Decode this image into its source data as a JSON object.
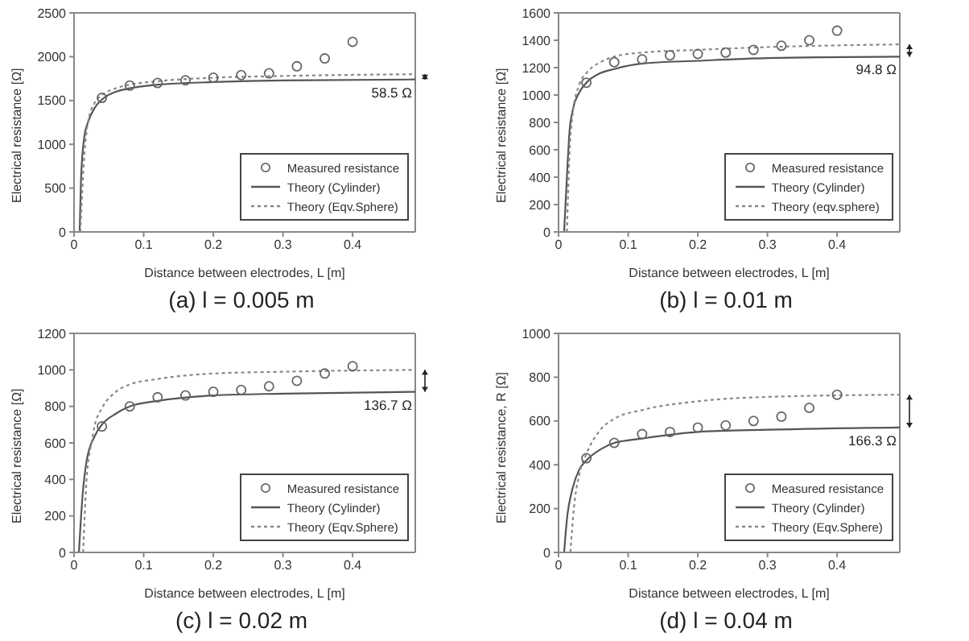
{
  "chart_data": [
    {
      "type": "scatter",
      "title": "(a) l = 0.005 m",
      "xlabel": "Distance between electrodes, L [m]",
      "ylabel": "Electrical resistance [Ω]",
      "xlim": [
        0,
        0.49
      ],
      "xticks": [
        0,
        0.1,
        0.2,
        0.3,
        0.4
      ],
      "ylim": [
        0,
        2500
      ],
      "yticks": [
        0,
        500,
        1000,
        1500,
        2000,
        2500
      ],
      "legend": "bottom right",
      "annotations": [
        "58.5 Ω"
      ],
      "series": [
        {
          "name": "Measured resistance",
          "type": "scatter",
          "marker": "circle",
          "color": "#666666",
          "x": [
            0.04,
            0.08,
            0.12,
            0.16,
            0.2,
            0.24,
            0.28,
            0.32,
            0.36,
            0.4
          ],
          "values": [
            1530,
            1670,
            1700,
            1730,
            1760,
            1790,
            1810,
            1890,
            1980,
            2170
          ]
        },
        {
          "name": "Theory (Cylinder)",
          "type": "line",
          "line_style": "solid",
          "color": "#555555",
          "x": [
            0.008,
            0.01,
            0.015,
            0.02,
            0.03,
            0.04,
            0.06,
            0.08,
            0.12,
            0.2,
            0.3,
            0.49
          ],
          "values": [
            0,
            600,
            1100,
            1250,
            1420,
            1510,
            1600,
            1640,
            1680,
            1710,
            1730,
            1740
          ]
        },
        {
          "name": "Theory (Eqv.Sphere)",
          "type": "line",
          "line_style": "dotted",
          "color": "#888888",
          "x": [
            0.009,
            0.015,
            0.02,
            0.03,
            0.04,
            0.06,
            0.08,
            0.12,
            0.2,
            0.3,
            0.49
          ],
          "values": [
            0,
            900,
            1250,
            1480,
            1560,
            1640,
            1680,
            1720,
            1760,
            1780,
            1800
          ]
        }
      ]
    },
    {
      "type": "scatter",
      "title": "(b) l = 0.01 m",
      "xlabel": "Distance between electrodes, L [m]",
      "ylabel": "Electrical resistance [Ω]",
      "xlim": [
        0,
        0.49
      ],
      "xticks": [
        0,
        0.1,
        0.2,
        0.3,
        0.4
      ],
      "ylim": [
        0,
        1600
      ],
      "yticks": [
        0,
        200,
        400,
        600,
        800,
        1000,
        1200,
        1400,
        1600
      ],
      "legend": "bottom right",
      "annotations": [
        "94.8 Ω"
      ],
      "series": [
        {
          "name": "Measured resistance",
          "type": "scatter",
          "marker": "circle",
          "color": "#666666",
          "x": [
            0.04,
            0.08,
            0.12,
            0.16,
            0.2,
            0.24,
            0.28,
            0.32,
            0.36,
            0.4
          ],
          "values": [
            1090,
            1240,
            1260,
            1290,
            1300,
            1310,
            1330,
            1360,
            1400,
            1470
          ]
        },
        {
          "name": "Theory (Cylinder)",
          "type": "line",
          "line_style": "solid",
          "color": "#555555",
          "x": [
            0.008,
            0.012,
            0.016,
            0.02,
            0.03,
            0.04,
            0.06,
            0.08,
            0.12,
            0.2,
            0.3,
            0.49
          ],
          "values": [
            0,
            400,
            750,
            880,
            1020,
            1090,
            1160,
            1190,
            1230,
            1250,
            1270,
            1280
          ]
        },
        {
          "name": "Theory (eqv.sphere)",
          "type": "line",
          "line_style": "dotted",
          "color": "#888888",
          "x": [
            0.012,
            0.016,
            0.02,
            0.03,
            0.04,
            0.06,
            0.08,
            0.12,
            0.2,
            0.3,
            0.49
          ],
          "values": [
            0,
            600,
            850,
            1080,
            1160,
            1240,
            1280,
            1310,
            1330,
            1350,
            1370
          ]
        }
      ]
    },
    {
      "type": "scatter",
      "title": "(c) l = 0.02 m",
      "xlabel": "Distance between electrodes, L [m]",
      "ylabel": "Electrical resistance [Ω]",
      "xlim": [
        0,
        0.49
      ],
      "xticks": [
        0,
        0.1,
        0.2,
        0.3,
        0.4
      ],
      "ylim": [
        0,
        1200
      ],
      "yticks": [
        0,
        200,
        400,
        600,
        800,
        1000,
        1200
      ],
      "legend": "bottom right",
      "annotations": [
        "136.7 Ω"
      ],
      "series": [
        {
          "name": "Measured resistance",
          "type": "scatter",
          "marker": "circle",
          "color": "#666666",
          "x": [
            0.04,
            0.08,
            0.12,
            0.16,
            0.2,
            0.24,
            0.28,
            0.32,
            0.36,
            0.4
          ],
          "values": [
            690,
            800,
            850,
            860,
            880,
            890,
            910,
            940,
            980,
            1020
          ]
        },
        {
          "name": "Theory (Cylinder)",
          "type": "line",
          "line_style": "solid",
          "color": "#555555",
          "x": [
            0.007,
            0.012,
            0.018,
            0.03,
            0.04,
            0.06,
            0.08,
            0.12,
            0.2,
            0.3,
            0.49
          ],
          "values": [
            0,
            300,
            500,
            640,
            700,
            760,
            800,
            830,
            860,
            870,
            880
          ]
        },
        {
          "name": "Theory (Eqv.Sphere)",
          "type": "line",
          "line_style": "dotted",
          "color": "#888888",
          "x": [
            0.013,
            0.018,
            0.025,
            0.03,
            0.04,
            0.06,
            0.08,
            0.12,
            0.2,
            0.3,
            0.49
          ],
          "values": [
            0,
            400,
            600,
            700,
            790,
            880,
            920,
            950,
            980,
            990,
            1000
          ]
        }
      ]
    },
    {
      "type": "scatter",
      "title": "(d) l = 0.04 m",
      "xlabel": "Distance between electrodes, L [m]",
      "ylabel": "Electrical resistance, R [Ω]",
      "xlim": [
        0,
        0.49
      ],
      "xticks": [
        0,
        0.1,
        0.2,
        0.3,
        0.4
      ],
      "ylim": [
        0,
        1000
      ],
      "yticks": [
        0,
        200,
        400,
        600,
        800,
        1000
      ],
      "legend": "bottom right",
      "annotations": [
        "166.3 Ω"
      ],
      "series": [
        {
          "name": "Measured resistance",
          "type": "scatter",
          "marker": "circle",
          "color": "#666666",
          "x": [
            0.04,
            0.08,
            0.12,
            0.16,
            0.2,
            0.24,
            0.28,
            0.32,
            0.36,
            0.4
          ],
          "values": [
            430,
            500,
            540,
            550,
            570,
            580,
            600,
            620,
            660,
            720
          ]
        },
        {
          "name": "Theory (Cylinder)",
          "type": "line",
          "line_style": "solid",
          "color": "#555555",
          "x": [
            0.008,
            0.012,
            0.02,
            0.03,
            0.04,
            0.06,
            0.08,
            0.12,
            0.2,
            0.3,
            0.49
          ],
          "values": [
            0,
            150,
            290,
            380,
            420,
            470,
            500,
            520,
            550,
            560,
            570
          ]
        },
        {
          "name": "Theory (Eqv.Sphere)",
          "type": "line",
          "line_style": "dotted",
          "color": "#888888",
          "x": [
            0.017,
            0.022,
            0.03,
            0.04,
            0.06,
            0.08,
            0.12,
            0.2,
            0.3,
            0.49
          ],
          "values": [
            0,
            200,
            360,
            450,
            560,
            610,
            650,
            690,
            710,
            720
          ]
        }
      ]
    }
  ]
}
